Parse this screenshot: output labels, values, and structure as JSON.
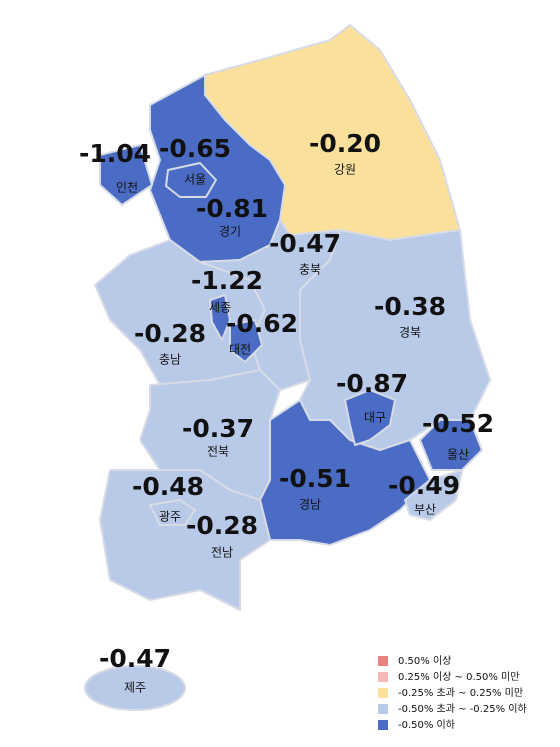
{
  "regions": [
    {
      "name": "인천",
      "value": -1.04,
      "label": "-1.04",
      "color": "#4a6cc4"
    },
    {
      "name": "서울",
      "value": -0.65,
      "label": "-0.65",
      "color": "#4a6cc4"
    },
    {
      "name": "경기",
      "value": -0.81,
      "label": "-0.81",
      "color": "#4a6cc4"
    },
    {
      "name": "강원",
      "value": -0.2,
      "label": "-0.20",
      "color": "#fae09a"
    },
    {
      "name": "충북",
      "value": -0.47,
      "label": "-0.47",
      "color": "#b9c9e8"
    },
    {
      "name": "세종",
      "value": -1.22,
      "label": "-1.22",
      "color": "#4a6cc4"
    },
    {
      "name": "대전",
      "value": -0.62,
      "label": "-0.62",
      "color": "#4a6cc4"
    },
    {
      "name": "충남",
      "value": -0.28,
      "label": "-0.28",
      "color": "#b9c9e8"
    },
    {
      "name": "경북",
      "value": -0.38,
      "label": "-0.38",
      "color": "#b9c9e8"
    },
    {
      "name": "대구",
      "value": -0.87,
      "label": "-0.87",
      "color": "#4a6cc4"
    },
    {
      "name": "울산",
      "value": -0.52,
      "label": "-0.52",
      "color": "#4a6cc4"
    },
    {
      "name": "전북",
      "value": -0.37,
      "label": "-0.37",
      "color": "#b9c9e8"
    },
    {
      "name": "경남",
      "value": -0.51,
      "label": "-0.51",
      "color": "#4a6cc4"
    },
    {
      "name": "부산",
      "value": -0.49,
      "label": "-0.49",
      "color": "#b9c9e8"
    },
    {
      "name": "광주",
      "value": -0.48,
      "label": "-0.48",
      "color": "#b9c9e8"
    },
    {
      "name": "전남",
      "value": -0.28,
      "label": "-0.28",
      "color": "#b9c9e8"
    },
    {
      "name": "제주",
      "value": -0.47,
      "label": "-0.47",
      "color": "#b9c9e8"
    }
  ],
  "legend": [
    {
      "label": "0.50% 이상",
      "color": "#e88080"
    },
    {
      "label": "0.25% 이상 ~ 0.50% 미만",
      "color": "#f4b8b8"
    },
    {
      "label": "-0.25% 초과 ~ 0.25% 미만",
      "color": "#fae09a"
    },
    {
      "label": "-0.50% 초과 ~ -0.25% 이하",
      "color": "#b9c9e8"
    },
    {
      "label": "-0.50% 이하",
      "color": "#4a6cc4"
    }
  ]
}
